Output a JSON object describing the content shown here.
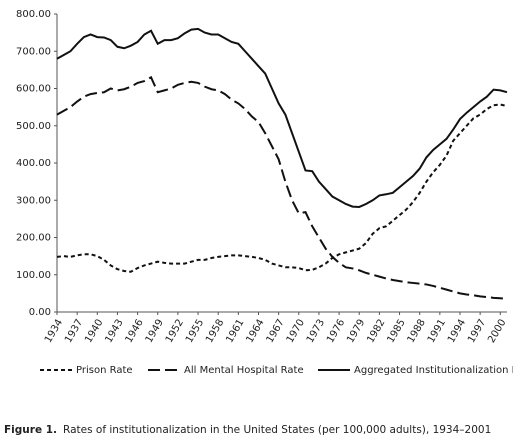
{
  "chart_data": {
    "type": "line",
    "caption_label": "Figure 1.",
    "caption_text": "Rates of institutionalization in the United States (per 100,000 adults), 1934–2001",
    "x": [
      1934,
      1935,
      1936,
      1937,
      1938,
      1939,
      1940,
      1941,
      1942,
      1943,
      1944,
      1945,
      1946,
      1947,
      1948,
      1949,
      1950,
      1951,
      1952,
      1953,
      1954,
      1955,
      1956,
      1957,
      1958,
      1959,
      1960,
      1961,
      1962,
      1963,
      1964,
      1965,
      1966,
      1967,
      1968,
      1969,
      1970,
      1971,
      1972,
      1973,
      1974,
      1975,
      1976,
      1977,
      1978,
      1979,
      1980,
      1981,
      1982,
      1983,
      1984,
      1985,
      1986,
      1987,
      1988,
      1989,
      1990,
      1991,
      1992,
      1993,
      1994,
      1995,
      1996,
      1997,
      1998,
      1999,
      2000,
      2001
    ],
    "series": [
      {
        "name": "Prison Rate",
        "color": "#111111",
        "dash": "4,3",
        "values": [
          148,
          150,
          148,
          152,
          155,
          155,
          150,
          140,
          125,
          115,
          110,
          108,
          118,
          125,
          130,
          135,
          132,
          130,
          130,
          130,
          135,
          140,
          140,
          145,
          148,
          150,
          152,
          152,
          150,
          148,
          145,
          140,
          130,
          125,
          120,
          120,
          118,
          112,
          113,
          120,
          130,
          145,
          155,
          160,
          165,
          170,
          185,
          210,
          225,
          230,
          245,
          260,
          275,
          295,
          320,
          350,
          375,
          395,
          420,
          460,
          480,
          500,
          520,
          530,
          545,
          555,
          557,
          553
        ]
      },
      {
        "name": "All Mental Hospital Rate",
        "color": "#111111",
        "dash": "12,5",
        "values": [
          530,
          540,
          550,
          565,
          578,
          585,
          588,
          590,
          600,
          595,
          598,
          605,
          615,
          620,
          630,
          590,
          595,
          600,
          610,
          615,
          618,
          615,
          605,
          598,
          595,
          585,
          570,
          560,
          545,
          525,
          510,
          480,
          445,
          410,
          350,
          300,
          265,
          268,
          230,
          200,
          170,
          148,
          132,
          120,
          117,
          112,
          105,
          100,
          95,
          90,
          86,
          83,
          80,
          78,
          76,
          74,
          70,
          65,
          60,
          55,
          50,
          47,
          45,
          42,
          40,
          38,
          37,
          35
        ]
      },
      {
        "name": "Aggregated Institutionalization Rate",
        "color": "#111111",
        "dash": "none",
        "values": [
          680,
          690,
          700,
          720,
          738,
          745,
          738,
          737,
          730,
          712,
          708,
          715,
          725,
          745,
          755,
          720,
          730,
          730,
          735,
          748,
          758,
          760,
          750,
          745,
          745,
          735,
          725,
          720,
          700,
          680,
          660,
          640,
          600,
          560,
          530,
          480,
          430,
          380,
          378,
          350,
          330,
          310,
          300,
          290,
          283,
          282,
          290,
          300,
          313,
          316,
          320,
          335,
          350,
          365,
          385,
          415,
          435,
          450,
          465,
          490,
          518,
          535,
          550,
          565,
          578,
          597,
          595,
          590
        ]
      }
    ],
    "xlim": [
      1934,
      2001
    ],
    "xticks": [
      1934,
      1937,
      1940,
      1943,
      1946,
      1949,
      1952,
      1955,
      1958,
      1961,
      1964,
      1967,
      1970,
      1973,
      1976,
      1979,
      1982,
      1985,
      1988,
      1991,
      1994,
      1997,
      2000
    ],
    "ylim": [
      0,
      800
    ],
    "yticks": [
      {
        "value": 0,
        "label": "0.00"
      },
      {
        "value": 100,
        "label": "100.00"
      },
      {
        "value": 200,
        "label": "200.00"
      },
      {
        "value": 300,
        "label": "300.00"
      },
      {
        "value": 400,
        "label": "400.00"
      },
      {
        "value": 500,
        "label": "500.00"
      },
      {
        "value": 600,
        "label": "600.00"
      },
      {
        "value": 700,
        "label": "700.00"
      },
      {
        "value": 800,
        "label": "800.00"
      }
    ],
    "grid": false
  }
}
